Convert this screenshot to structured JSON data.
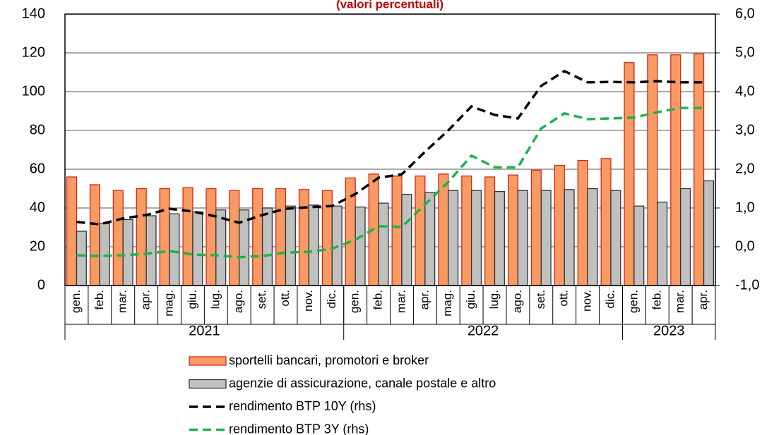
{
  "chart_data": {
    "type": "bar_line",
    "title": "(valori percentuali)",
    "categories": [
      "gen.",
      "feb.",
      "mar.",
      "apr.",
      "mag.",
      "giu.",
      "lug.",
      "ago.",
      "set.",
      "ott.",
      "nov.",
      "dic.",
      "gen.",
      "feb.",
      "mar.",
      "apr.",
      "mag.",
      "giu.",
      "lug.",
      "ago.",
      "set.",
      "ott.",
      "nov.",
      "dic.",
      "gen.",
      "feb.",
      "mar.",
      "apr."
    ],
    "year_groups": [
      {
        "label": "2021",
        "count": 12
      },
      {
        "label": "2022",
        "count": 12
      },
      {
        "label": "2023",
        "count": 4
      }
    ],
    "series": [
      {
        "name": "sportelli bancari, promotori e broker",
        "kind": "bar",
        "color": "#f79a63",
        "stroke": "#d62818",
        "values": [
          56,
          52,
          49,
          50,
          50,
          50.5,
          50,
          49,
          50,
          50,
          49.5,
          49,
          55.5,
          57.5,
          56.5,
          56.5,
          57.5,
          56.5,
          56,
          57,
          59.5,
          62,
          64.5,
          65.5,
          115,
          119,
          119,
          119.5
        ]
      },
      {
        "name": "agenzie di assicurazione, canale postale e altro",
        "kind": "bar",
        "color": "#c0c0c0",
        "stroke": "#333333",
        "values": [
          28,
          32,
          34,
          36,
          37,
          38,
          39,
          39,
          40,
          41,
          41.5,
          41,
          40.5,
          42.5,
          47,
          48,
          49,
          49,
          48.5,
          49,
          49,
          49.5,
          50,
          49,
          41,
          43,
          50,
          54
        ]
      },
      {
        "name": "rendimento BTP 10Y (rhs)",
        "kind": "line",
        "axis": "y2",
        "color": "#000000",
        "values": [
          0.64,
          0.58,
          0.73,
          0.82,
          0.98,
          0.91,
          0.78,
          0.62,
          0.82,
          0.98,
          1.02,
          1.05,
          1.36,
          1.78,
          1.87,
          2.45,
          3.0,
          3.62,
          3.4,
          3.31,
          4.15,
          4.53,
          4.24,
          4.25,
          4.24,
          4.27,
          4.24,
          4.24
        ]
      },
      {
        "name": "rendimento BTP 3Y (rhs)",
        "kind": "line",
        "axis": "y2",
        "color": "#1db34a",
        "values": [
          -0.22,
          -0.24,
          -0.22,
          -0.18,
          -0.11,
          -0.2,
          -0.22,
          -0.27,
          -0.24,
          -0.15,
          -0.13,
          -0.05,
          0.18,
          0.53,
          0.51,
          1.09,
          1.67,
          2.35,
          2.05,
          2.05,
          3.05,
          3.44,
          3.29,
          3.31,
          3.33,
          3.47,
          3.58,
          3.58
        ]
      }
    ],
    "ylim": [
      0,
      140
    ],
    "yticks": [
      0,
      20,
      40,
      60,
      80,
      100,
      120,
      140
    ],
    "y2lim": [
      -1,
      6
    ],
    "y2ticks": [
      {
        "value": -1,
        "label": "-1,0"
      },
      {
        "value": 0,
        "label": "0,0"
      },
      {
        "value": 1,
        "label": "1,0"
      },
      {
        "value": 2,
        "label": "2,0"
      },
      {
        "value": 3,
        "label": "3,0"
      },
      {
        "value": 4,
        "label": "4,0"
      },
      {
        "value": 5,
        "label": "5,0"
      },
      {
        "value": 6,
        "label": "6,0"
      }
    ],
    "grid": true
  }
}
